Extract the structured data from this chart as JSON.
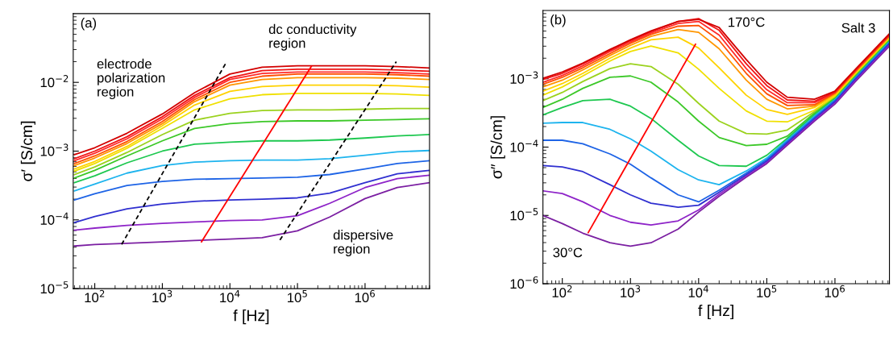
{
  "chart_data": [
    {
      "type": "line",
      "log": "xy",
      "xlabel": "f [Hz]",
      "ylabel": "σ′ [S/cm]",
      "x": [
        50,
        100,
        300,
        1000,
        3000,
        10000,
        30000,
        100000,
        300000,
        1000000,
        3000000,
        9000000
      ],
      "xlim": [
        48,
        9000000
      ],
      "ylim": [
        1e-05,
        0.1
      ],
      "xticks": [
        {
          "value": 100,
          "label": "10$^{2}$"
        },
        {
          "value": 1000,
          "label": "10$^{3}$"
        },
        {
          "value": 10000,
          "label": "10$^{4}$"
        },
        {
          "value": 100000,
          "label": "10$^{5}$"
        },
        {
          "value": 1000000,
          "label": "10$^{6}$"
        }
      ],
      "yticks": [
        {
          "value": 1e-05,
          "label": "10$^{−5}$"
        },
        {
          "value": 0.0001,
          "label": "10$^{−4}$"
        },
        {
          "value": 0.001,
          "label": "10$^{−3}$"
        },
        {
          "value": 0.01,
          "label": "10$^{−2}$"
        }
      ],
      "series": [
        {
          "color": "#7b1fa2",
          "values": [
            4.17e-05,
            4.37e-05,
            4.57e-05,
            4.79e-05,
            5.01e-05,
            5.25e-05,
            5.5e-05,
            6.92e-05,
            0.00011,
            0.000204,
            0.000295,
            0.000347
          ]
        },
        {
          "color": "#8e24c8",
          "values": [
            7.08e-05,
            7.59e-05,
            8.32e-05,
            8.91e-05,
            9.33e-05,
            9.77e-05,
            0.0001,
            0.000115,
            0.000174,
            0.000295,
            0.000398,
            0.000447
          ]
        },
        {
          "color": "#3030d0",
          "values": [
            9.12e-05,
            0.000112,
            0.000145,
            0.00017,
            0.000186,
            0.000195,
            0.0002,
            0.000209,
            0.000245,
            0.000347,
            0.000468,
            0.000525
          ]
        },
        {
          "color": "#1e64e6",
          "values": [
            0.000195,
            0.00024,
            0.000316,
            0.000363,
            0.000389,
            0.000398,
            0.000407,
            0.000417,
            0.000457,
            0.00055,
            0.000661,
            0.000724
          ]
        },
        {
          "color": "#1eb4ee",
          "values": [
            0.000263,
            0.000331,
            0.000479,
            0.000617,
            0.000692,
            0.000724,
            0.000741,
            0.000741,
            0.000776,
            0.000871,
            0.000977,
            0.00102
          ]
        },
        {
          "color": "#1ec850",
          "values": [
            0.000347,
            0.000437,
            0.000676,
            0.001,
            0.00126,
            0.00135,
            0.00141,
            0.00141,
            0.00145,
            0.00155,
            0.00166,
            0.00174
          ]
        },
        {
          "color": "#3cc828",
          "values": [
            0.000407,
            0.000525,
            0.000851,
            0.00141,
            0.00214,
            0.00251,
            0.00269,
            0.00275,
            0.00275,
            0.00282,
            0.00288,
            0.00295
          ]
        },
        {
          "color": "#9bd21e",
          "values": [
            0.000457,
            0.000589,
            0.000955,
            0.00174,
            0.00282,
            0.00355,
            0.00389,
            0.00398,
            0.00398,
            0.00407,
            0.00417,
            0.00417
          ]
        },
        {
          "color": "#f0e000",
          "values": [
            0.000513,
            0.000661,
            0.0011,
            0.00214,
            0.00398,
            0.00575,
            0.00661,
            0.00692,
            0.00692,
            0.00692,
            0.00676,
            0.00646
          ]
        },
        {
          "color": "#ffd200",
          "values": [
            0.00055,
            0.000708,
            0.00117,
            0.00234,
            0.00468,
            0.00741,
            0.00871,
            0.00912,
            0.00912,
            0.00912,
            0.00891,
            0.00851
          ]
        },
        {
          "color": "#ff9600",
          "values": [
            0.000617,
            0.000794,
            0.00129,
            0.00251,
            0.00525,
            0.00912,
            0.011,
            0.0117,
            0.0117,
            0.0117,
            0.0115,
            0.011
          ]
        },
        {
          "color": "#ff5000",
          "values": [
            0.000661,
            0.000851,
            0.00138,
            0.00269,
            0.00562,
            0.01,
            0.0123,
            0.0132,
            0.0132,
            0.0132,
            0.0129,
            0.0123
          ]
        },
        {
          "color": "#ff2a2a",
          "values": [
            0.000724,
            0.000933,
            0.00151,
            0.00295,
            0.00603,
            0.011,
            0.0135,
            0.0141,
            0.0141,
            0.0141,
            0.0138,
            0.0132
          ]
        },
        {
          "color": "#f01414",
          "values": [
            0.000776,
            0.001,
            0.00162,
            0.00316,
            0.00646,
            0.0117,
            0.0148,
            0.0155,
            0.0155,
            0.0155,
            0.0151,
            0.0145
          ]
        },
        {
          "color": "#d20000",
          "values": [
            0.000891,
            0.00112,
            0.00182,
            0.00347,
            0.00708,
            0.0132,
            0.0166,
            0.0174,
            0.0174,
            0.0174,
            0.017,
            0.0162
          ]
        },
        {
          "color": "#000000",
          "line_style": "dashed",
          "x": [
            250,
            8700
          ],
          "values": [
            4.4e-05,
            0.019
          ]
        },
        {
          "color": "#000000",
          "line_style": "dashed",
          "x": [
            55000,
            2900000
          ],
          "values": [
            5.1e-05,
            0.02
          ]
        },
        {
          "color": "#ff0000",
          "x": [
            3800,
            160000
          ],
          "values": [
            4.8e-05,
            0.017
          ]
        }
      ],
      "annotations": [
        "(a)",
        "electrode\npolarization\nregion",
        "dc conductivity\nregion",
        "dispersive\nregion"
      ]
    },
    {
      "type": "line",
      "log": "xy",
      "xlabel": "f [Hz]",
      "ylabel": "σ″ [S/cm]",
      "x": [
        52,
        100,
        200,
        500,
        1000,
        2000,
        5000,
        10000,
        20000,
        50000,
        100000,
        200000,
        500000,
        1000000,
        2000000,
        6300000
      ],
      "xlim": [
        52,
        6300000
      ],
      "ylim": [
        1e-06,
        0.01
      ],
      "xticks": [
        {
          "value": 100,
          "label": "10$^{2}$"
        },
        {
          "value": 1000,
          "label": "10$^{3}$"
        },
        {
          "value": 10000,
          "label": "10$^{4}$"
        },
        {
          "value": 100000,
          "label": "10$^{5}$"
        },
        {
          "value": 1000000,
          "label": "10$^{6}$"
        }
      ],
      "yticks": [
        {
          "value": 1e-06,
          "label": "10$^{−6}$"
        },
        {
          "value": 1e-05,
          "label": "10$^{−5}$"
        },
        {
          "value": 0.0001,
          "label": "10$^{−4}$"
        },
        {
          "value": 0.001,
          "label": "10$^{−3}$"
        }
      ],
      "series": [
        {
          "color": "#7b1fa2",
          "values": [
            1e-05,
            7.59e-06,
            5.5e-06,
            3.98e-06,
            3.55e-06,
            3.98e-06,
            6.31e-06,
            1.12e-05,
            1.91e-05,
            3.63e-05,
            5.75e-05,
            0.000107,
            0.00024,
            0.000427,
            0.000912,
            0.00302
          ]
        },
        {
          "color": "#8e24c8",
          "values": [
            2.29e-05,
            2.09e-05,
            1.58e-05,
            1e-05,
            7.94e-06,
            7.24e-06,
            8.32e-06,
            1.2e-05,
            2.04e-05,
            3.8e-05,
            6.03e-05,
            0.000112,
            0.000251,
            0.000447,
            0.000955,
            0.00316
          ]
        },
        {
          "color": "#3030d0",
          "values": [
            5.37e-05,
            5.13e-05,
            4.37e-05,
            2.82e-05,
            2e-05,
            1.51e-05,
            1.32e-05,
            1.41e-05,
            2.19e-05,
            3.98e-05,
            6.31e-05,
            0.000117,
            0.000263,
            0.000468,
            0.001,
            0.00331
          ]
        },
        {
          "color": "#1e64e6",
          "values": [
            0.000126,
            0.000126,
            0.000112,
            7.94e-05,
            5.62e-05,
            3.55e-05,
            2e-05,
            1.58e-05,
            2.34e-05,
            4.17e-05,
            6.61e-05,
            0.000123,
            0.000275,
            0.00049,
            0.00105,
            0.00347
          ]
        },
        {
          "color": "#1eb4ee",
          "values": [
            0.000224,
            0.000229,
            0.000229,
            0.000182,
            0.000132,
            8.71e-05,
            4.68e-05,
            3.31e-05,
            2.82e-05,
            4.47e-05,
            6.92e-05,
            0.000129,
            0.000288,
            0.000513,
            0.0011,
            0.00363
          ]
        },
        {
          "color": "#1ec850",
          "values": [
            0.000295,
            0.00038,
            0.000479,
            0.000501,
            0.000398,
            0.000263,
            0.000126,
            7.41e-05,
            5.37e-05,
            5.25e-05,
            7.59e-05,
            0.000135,
            0.000302,
            0.000525,
            0.00112,
            0.00372
          ]
        },
        {
          "color": "#3cc828",
          "values": [
            0.00038,
            0.000501,
            0.000724,
            0.00105,
            0.0011,
            0.000891,
            0.000457,
            0.00024,
            0.000138,
            0.000105,
            0.00011,
            0.000145,
            0.000316,
            0.000537,
            0.00115,
            0.0038
          ]
        },
        {
          "color": "#9bd21e",
          "values": [
            0.000479,
            0.000631,
            0.000912,
            0.00141,
            0.00166,
            0.00151,
            0.000832,
            0.000437,
            0.00024,
            0.000158,
            0.000155,
            0.000178,
            0.000331,
            0.00055,
            0.00117,
            0.00389
          ]
        },
        {
          "color": "#f0e000",
          "values": [
            0.000575,
            0.000759,
            0.0011,
            0.00182,
            0.00251,
            0.00302,
            0.0024,
            0.00138,
            0.000724,
            0.000339,
            0.00024,
            0.000234,
            0.000347,
            0.000562,
            0.0012,
            0.00398
          ]
        },
        {
          "color": "#ffd200",
          "values": [
            0.000661,
            0.000851,
            0.0012,
            0.002,
            0.00282,
            0.00372,
            0.00407,
            0.00282,
            0.00145,
            0.000575,
            0.000355,
            0.000302,
            0.00038,
            0.000575,
            0.00123,
            0.00407
          ]
        },
        {
          "color": "#ff9600",
          "values": [
            0.000759,
            0.000955,
            0.00135,
            0.00219,
            0.00309,
            0.00417,
            0.00525,
            0.00479,
            0.00275,
            0.000955,
            0.000501,
            0.000363,
            0.000398,
            0.000603,
            0.00126,
            0.00417
          ]
        },
        {
          "color": "#ff5000",
          "values": [
            0.000832,
            0.00105,
            0.00145,
            0.00234,
            0.00331,
            0.00447,
            0.00589,
            0.00603,
            0.00363,
            0.0012,
            0.000603,
            0.000407,
            0.000417,
            0.000617,
            0.00129,
            0.00427
          ]
        },
        {
          "color": "#ff2a2a",
          "values": [
            0.000891,
            0.00112,
            0.00155,
            0.00251,
            0.00347,
            0.00468,
            0.00646,
            0.00692,
            0.00437,
            0.00141,
            0.000692,
            0.000447,
            0.000447,
            0.000631,
            0.00132,
            0.00437
          ]
        },
        {
          "color": "#f01414",
          "values": [
            0.000977,
            0.0012,
            0.00166,
            0.00263,
            0.00363,
            0.0049,
            0.00692,
            0.00759,
            0.00513,
            0.00166,
            0.000794,
            0.00049,
            0.000468,
            0.000646,
            0.00135,
            0.00447
          ]
        },
        {
          "color": "#d20000",
          "values": [
            0.00102,
            0.00126,
            0.0017,
            0.00269,
            0.00372,
            0.00501,
            0.00692,
            0.00741,
            0.00562,
            0.00191,
            0.000891,
            0.000537,
            0.000501,
            0.000661,
            0.00138,
            0.00457
          ]
        },
        {
          "color": "#ff0000",
          "x": [
            240,
            9000
          ],
          "values": [
            5.6e-06,
            0.0032
          ]
        }
      ],
      "annotations": [
        "(b)",
        "Salt 3",
        "170°C",
        "30°C"
      ]
    }
  ]
}
